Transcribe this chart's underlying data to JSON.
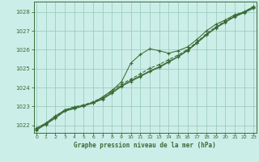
{
  "title": "Graphe pression niveau de la mer (hPa)",
  "bg_color": "#cceee8",
  "line_color": "#3a6b35",
  "grid_color": "#99ccbb",
  "spine_color": "#3a6b35",
  "xlim": [
    -0.3,
    23.3
  ],
  "ylim": [
    1021.6,
    1028.55
  ],
  "yticks": [
    1022,
    1023,
    1024,
    1025,
    1026,
    1027,
    1028
  ],
  "xticks": [
    0,
    1,
    2,
    3,
    4,
    5,
    6,
    7,
    8,
    9,
    10,
    11,
    12,
    13,
    14,
    15,
    16,
    17,
    18,
    19,
    20,
    21,
    22,
    23
  ],
  "x": [
    0,
    1,
    2,
    3,
    4,
    5,
    6,
    7,
    8,
    9,
    10,
    11,
    12,
    13,
    14,
    15,
    16,
    17,
    18,
    19,
    20,
    21,
    22,
    23
  ],
  "line1": [
    1021.85,
    1022.12,
    1022.5,
    1022.8,
    1022.95,
    1023.05,
    1023.2,
    1023.5,
    1023.85,
    1024.3,
    1025.3,
    1025.75,
    1026.05,
    1025.95,
    1025.82,
    1025.95,
    1026.15,
    1026.55,
    1027.0,
    1027.35,
    1027.58,
    1027.85,
    1028.0,
    1028.3
  ],
  "line2": [
    1021.82,
    1022.1,
    1022.45,
    1022.82,
    1022.98,
    1023.08,
    1023.25,
    1023.48,
    1023.82,
    1024.18,
    1024.45,
    1024.72,
    1025.02,
    1025.22,
    1025.48,
    1025.72,
    1026.02,
    1026.42,
    1026.85,
    1027.22,
    1027.52,
    1027.82,
    1028.02,
    1028.28
  ],
  "line3": [
    1021.78,
    1022.08,
    1022.42,
    1022.78,
    1022.92,
    1023.05,
    1023.2,
    1023.42,
    1023.75,
    1024.1,
    1024.38,
    1024.62,
    1024.88,
    1025.1,
    1025.38,
    1025.65,
    1025.98,
    1026.38,
    1026.8,
    1027.18,
    1027.48,
    1027.78,
    1027.98,
    1028.24
  ],
  "line4": [
    1021.75,
    1022.05,
    1022.38,
    1022.75,
    1022.88,
    1023.02,
    1023.18,
    1023.38,
    1023.7,
    1024.06,
    1024.32,
    1024.58,
    1024.84,
    1025.06,
    1025.34,
    1025.62,
    1025.95,
    1026.35,
    1026.78,
    1027.15,
    1027.45,
    1027.75,
    1027.96,
    1028.2
  ]
}
